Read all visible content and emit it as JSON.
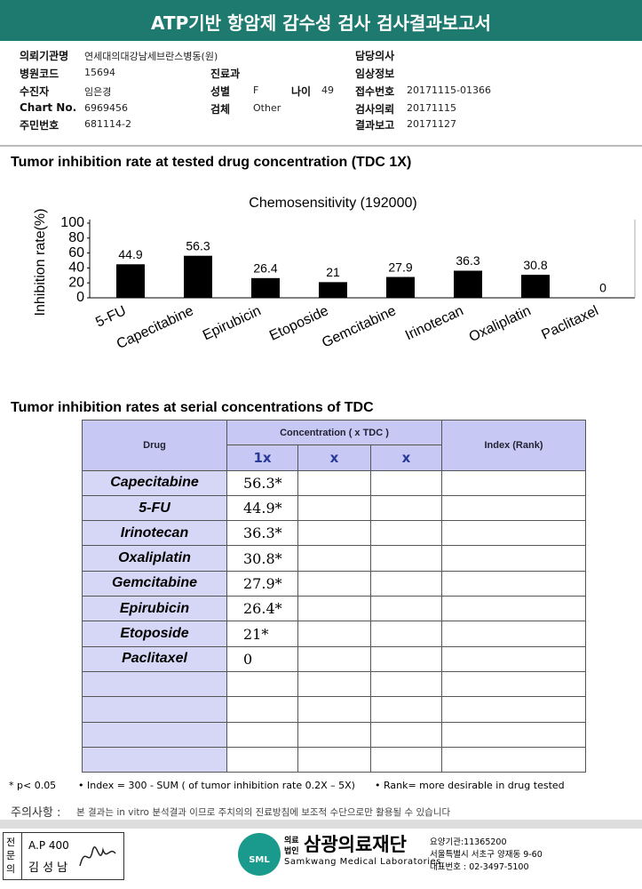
{
  "header": {
    "title": "ATP기반 항암제 감수성 검사 검사결과보고서"
  },
  "info": {
    "institution_label": "의뢰기관명",
    "institution": "연세대의대강남세브란스병동(원)",
    "doctor_label": "담당의사",
    "hospital_code_label": "병원코드",
    "hospital_code": "15694",
    "department_label": "진료과",
    "clinical_info_label": "임상정보",
    "patient_label": "수진자",
    "patient": "임은경",
    "sex_label": "성별",
    "sex": "F",
    "age_label": "나이",
    "age": "49",
    "receipt_no_label": "접수번호",
    "receipt_no": "20171115-01366",
    "chart_no_label": "Chart No.",
    "chart_no": "6969456",
    "specimen_label": "검체",
    "specimen": "Other",
    "request_date_label": "검사의뢰",
    "request_date": "20171115",
    "id_no_label": "주민번호",
    "id_no": "681114-2",
    "report_date_label": "결과보고",
    "report_date": "20171127"
  },
  "section1": "Tumor inhibition rate at tested drug concentration (TDC 1X)",
  "chart_data": {
    "type": "bar",
    "title": "Chemosensitivity (192000)",
    "y_label": "Inhibition rate(%)",
    "categories": [
      "5-FU",
      "Capecitabine",
      "Epirubicin",
      "Etoposide",
      "Gemcitabine",
      "Irinotecan",
      "Oxaliplatin",
      "Paclitaxel"
    ],
    "values": [
      44.9,
      56.3,
      26.4,
      21,
      27.9,
      36.3,
      30.8,
      0
    ],
    "color": "#000000",
    "ylim": [
      0,
      100
    ],
    "yticks": [
      0,
      20,
      40,
      60,
      80,
      100
    ],
    "grid": false
  },
  "section2": "Tumor inhibition rates at serial concentrations of TDC",
  "table": {
    "header": {
      "drug": "Drug",
      "concentration": "Concentration ( x TDC )",
      "index": "Index (Rank)",
      "conc_cols": [
        "1x",
        "x",
        "x"
      ]
    },
    "rows": [
      [
        "Capecitabine",
        "56.3*"
      ],
      [
        "5-FU",
        "44.9*"
      ],
      [
        "Irinotecan",
        "36.3*"
      ],
      [
        "Oxaliplatin",
        "30.8*"
      ],
      [
        "Gemcitabine",
        "27.9*"
      ],
      [
        "Epirubicin",
        "26.4*"
      ],
      [
        "Etoposide",
        "21*"
      ],
      [
        "Paclitaxel",
        "0"
      ]
    ]
  },
  "notes": {
    "p": "* p< 0.05",
    "index": "• Index = 300 - SUM ( of tumor inhibition rate 0.2X – 5X)",
    "rank": "• Rank= more desirable in drug tested",
    "caution_label": "주의사항 :",
    "caution": "본 결과는 in vitro 분석결과 이므로 주치의의 진료방침에 보조적 수단으로만 활용될 수 있습니다"
  },
  "footer": {
    "specialist": "전문의",
    "ap": "A.P 400",
    "doctor": "김 성 남",
    "logo": "SML",
    "org_prefix_1": "의료",
    "org_prefix_2": "법인",
    "org_name": "삼광의료재단",
    "org_en": "Samkwang Medical Laboratories",
    "contact": [
      "요양기관:11365200",
      "서울특별시 서초구 양재동 9-60",
      "대표번호 : 02-3497-5100"
    ]
  }
}
